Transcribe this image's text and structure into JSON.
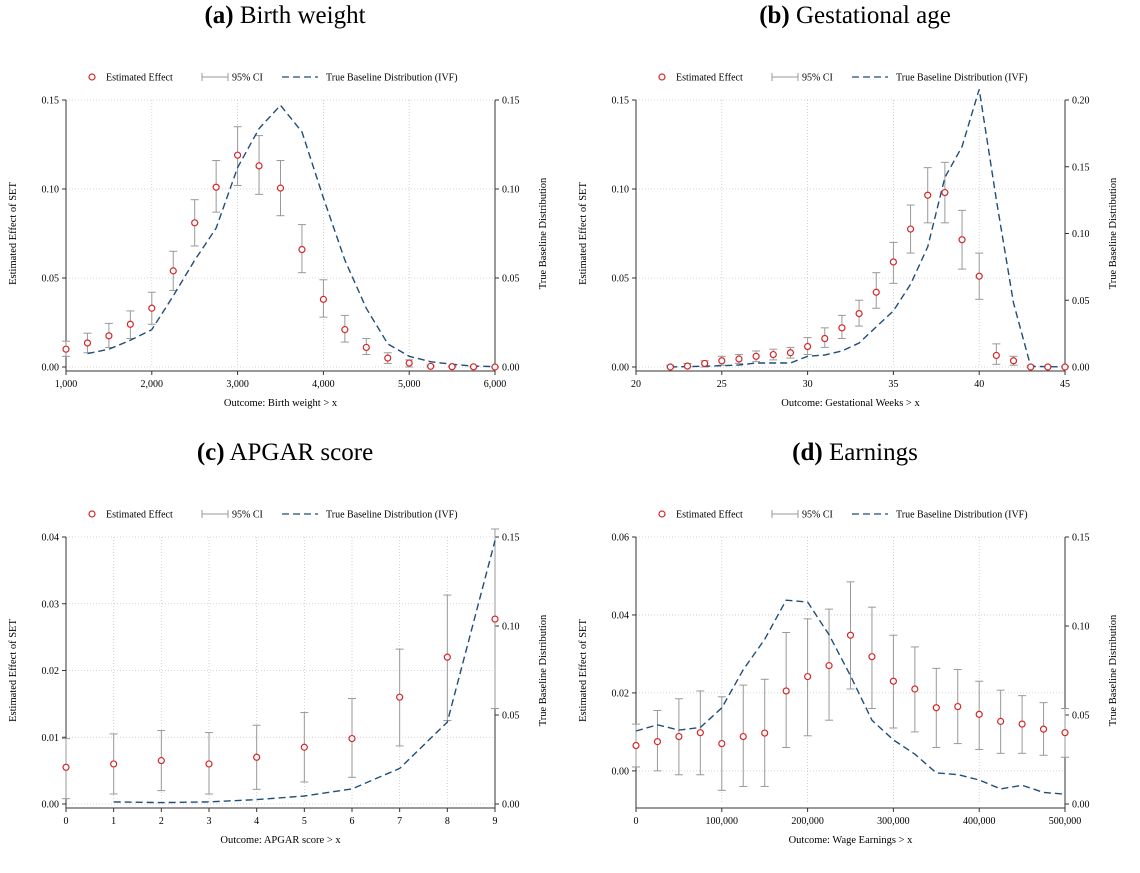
{
  "chart_data": [
    {
      "type": "scatter",
      "label": "(a)",
      "title": "Birth weight",
      "xlabel": "Outcome: Birth weight > x",
      "ylabel": "Estimated Effect of SET",
      "y2label": "True Baseline Distribution",
      "legend": [
        "Estimated Effect",
        "95% CI",
        "True Baseline Distribution (IVF)"
      ],
      "xlim": [
        1000,
        6000
      ],
      "ylim": [
        0,
        0.15
      ],
      "y2lim": [
        0,
        0.15
      ],
      "xticks": [
        1000,
        2000,
        3000,
        4000,
        5000,
        6000
      ],
      "xtick_labels": [
        "1,000",
        "2,000",
        "3,000",
        "4,000",
        "5,000",
        "6,000"
      ],
      "yticks": [
        0,
        0.05,
        0.1,
        0.15
      ],
      "ytick_labels": [
        "0.00",
        "0.05",
        "0.10",
        "0.15"
      ],
      "y2ticks": [
        0,
        0.05,
        0.1,
        0.15
      ],
      "y2tick_labels": [
        "0.00",
        "0.05",
        "0.10",
        "0.15"
      ],
      "grid": true,
      "estimate": {
        "x": [
          1000,
          1250,
          1500,
          1750,
          2000,
          2250,
          2500,
          2750,
          3000,
          3250,
          3500,
          3750,
          4000,
          4250,
          4500,
          4750,
          5000,
          5250,
          5500,
          5750,
          6000
        ],
        "y": [
          0.01,
          0.0135,
          0.0175,
          0.024,
          0.033,
          0.054,
          0.081,
          0.101,
          0.119,
          0.113,
          0.1005,
          0.066,
          0.038,
          0.021,
          0.011,
          0.005,
          0.0022,
          0.0004,
          0.0002,
          0.0001,
          0.0
        ],
        "ci_low": [
          0.006,
          0.008,
          0.011,
          0.016,
          0.024,
          0.043,
          0.068,
          0.087,
          0.102,
          0.097,
          0.085,
          0.053,
          0.028,
          0.014,
          0.007,
          0.002,
          0.0,
          0.0,
          0.0,
          0.0,
          0.0
        ],
        "ci_high": [
          0.0145,
          0.019,
          0.0245,
          0.0315,
          0.042,
          0.065,
          0.094,
          0.116,
          0.135,
          0.13,
          0.116,
          0.08,
          0.049,
          0.029,
          0.016,
          0.008,
          0.004,
          0.001,
          0.0005,
          0.0003,
          0.0002
        ]
      },
      "baseline": {
        "x": [
          1250,
          1500,
          1750,
          2000,
          2250,
          2500,
          2750,
          3000,
          3250,
          3500,
          3750,
          4000,
          4250,
          4500,
          4750,
          5000,
          5250,
          5500,
          5750,
          6000
        ],
        "y": [
          0.0075,
          0.01,
          0.015,
          0.021,
          0.04,
          0.06,
          0.078,
          0.112,
          0.134,
          0.147,
          0.132,
          0.095,
          0.06,
          0.033,
          0.013,
          0.006,
          0.003,
          0.0015,
          0.0005,
          0.0002
        ]
      }
    },
    {
      "type": "scatter",
      "label": "(b)",
      "title": "Gestational age",
      "xlabel": "Outcome: Gestational Weeks > x",
      "ylabel": "Estimated Effect of SET",
      "y2label": "True Baseline Distribution",
      "legend": [
        "Estimated Effect",
        "95% CI",
        "True Baseline Distribution (IVF)"
      ],
      "xlim": [
        20,
        45
      ],
      "ylim": [
        0,
        0.15
      ],
      "y2lim": [
        0,
        0.2
      ],
      "xticks": [
        20,
        25,
        30,
        35,
        40,
        45
      ],
      "xtick_labels": [
        "20",
        "25",
        "30",
        "35",
        "40",
        "45"
      ],
      "yticks": [
        0,
        0.05,
        0.1,
        0.15
      ],
      "ytick_labels": [
        "0.00",
        "0.05",
        "0.10",
        "0.15"
      ],
      "y2ticks": [
        0,
        0.05,
        0.1,
        0.15,
        0.2
      ],
      "y2tick_labels": [
        "0.00",
        "0.05",
        "0.10",
        "0.15",
        "0.20"
      ],
      "grid": true,
      "estimate": {
        "x": [
          22,
          23,
          24,
          25,
          26,
          27,
          28,
          29,
          30,
          31,
          32,
          33,
          34,
          35,
          36,
          37,
          38,
          39,
          40,
          41,
          42,
          43,
          44,
          45
        ],
        "y": [
          0.0,
          0.0005,
          0.002,
          0.0035,
          0.0045,
          0.006,
          0.007,
          0.008,
          0.0115,
          0.016,
          0.022,
          0.03,
          0.042,
          0.059,
          0.0775,
          0.0965,
          0.098,
          0.0715,
          0.051,
          0.0065,
          0.0035,
          0.0,
          0.0,
          0.0
        ],
        "ci_low": [
          0.0,
          0.0,
          0.0,
          0.001,
          0.002,
          0.003,
          0.004,
          0.005,
          0.007,
          0.011,
          0.016,
          0.023,
          0.033,
          0.047,
          0.064,
          0.081,
          0.081,
          0.055,
          0.038,
          0.0015,
          0.001,
          0.0,
          0.0,
          0.0
        ],
        "ci_high": [
          0.001,
          0.002,
          0.0035,
          0.006,
          0.007,
          0.009,
          0.01,
          0.011,
          0.0165,
          0.022,
          0.029,
          0.0375,
          0.053,
          0.07,
          0.091,
          0.112,
          0.115,
          0.088,
          0.064,
          0.013,
          0.006,
          0.001,
          0.0005,
          0.0005
        ]
      },
      "baseline": {
        "x": [
          22,
          23,
          24,
          25,
          26,
          27,
          28,
          29,
          30,
          31,
          32,
          33,
          34,
          35,
          36,
          37,
          38,
          39,
          40,
          41,
          42,
          43,
          44,
          45
        ],
        "y": [
          0.0,
          0.0003,
          0.0006,
          0.001,
          0.0015,
          0.003,
          0.003,
          0.003,
          0.008,
          0.009,
          0.012,
          0.018,
          0.03,
          0.042,
          0.062,
          0.09,
          0.142,
          0.165,
          0.208,
          0.125,
          0.048,
          0.0005,
          0.0002,
          0.0001
        ]
      }
    },
    {
      "type": "scatter",
      "label": "(c)",
      "title": "APGAR score",
      "xlabel": "Outcome: APGAR score > x",
      "ylabel": "Estimated Effect of SET",
      "y2label": "True Baseline Distribution",
      "legend": [
        "Estimated Effect",
        "95% CI",
        "True Baseline Distribution (IVF)"
      ],
      "xlim": [
        0,
        9
      ],
      "ylim": [
        0,
        0.04
      ],
      "y2lim": [
        0,
        0.15
      ],
      "xticks": [
        0,
        1,
        2,
        3,
        4,
        5,
        6,
        7,
        8,
        9
      ],
      "xtick_labels": [
        "0",
        "1",
        "2",
        "3",
        "4",
        "5",
        "6",
        "7",
        "8",
        "9"
      ],
      "yticks": [
        0,
        0.01,
        0.02,
        0.03,
        0.04
      ],
      "ytick_labels": [
        "0.00",
        "0.01",
        "0.02",
        "0.03",
        "0.04"
      ],
      "y2ticks": [
        0,
        0.05,
        0.1,
        0.15
      ],
      "y2tick_labels": [
        "0.00",
        "0.05",
        "0.10",
        "0.15"
      ],
      "grid": true,
      "estimate": {
        "x": [
          0,
          1,
          2,
          3,
          4,
          5,
          6,
          7,
          8,
          9
        ],
        "y": [
          0.0055,
          0.006,
          0.0065,
          0.006,
          0.007,
          0.0085,
          0.0098,
          0.016,
          0.022,
          0.0277
        ],
        "ci_low": [
          0.0008,
          0.0015,
          0.002,
          0.0015,
          0.0022,
          0.0033,
          0.004,
          0.0087,
          0.0125,
          0.0143
        ],
        "ci_high": [
          0.0098,
          0.0105,
          0.011,
          0.0107,
          0.0118,
          0.0137,
          0.0158,
          0.0232,
          0.0313,
          0.0412
        ]
      },
      "baseline": {
        "x": [
          1,
          2,
          3,
          4,
          5,
          6,
          7,
          8,
          9
        ],
        "y": [
          0.0012,
          0.0008,
          0.0012,
          0.0025,
          0.0045,
          0.0085,
          0.02,
          0.046,
          0.148
        ]
      }
    },
    {
      "type": "scatter",
      "label": "(d)",
      "title": "Earnings",
      "xlabel": "Outcome: Wage Earnings > x",
      "ylabel": "Estimated Effect of SET",
      "y2label": "True Baseline Distribution",
      "legend": [
        "Estimated Effect",
        "95% CI",
        "True Baseline Distribution (IVF)"
      ],
      "xlim": [
        0,
        500000
      ],
      "ylim": [
        -0.0085,
        0.06
      ],
      "y2lim": [
        0,
        0.15
      ],
      "xticks": [
        0,
        100000,
        200000,
        300000,
        400000,
        500000
      ],
      "xtick_labels": [
        "0",
        "100,000",
        "200,000",
        "300,000",
        "400,000",
        "500,000"
      ],
      "yticks": [
        0,
        0.02,
        0.04,
        0.06
      ],
      "ytick_labels": [
        "0.00",
        "0.02",
        "0.04",
        "0.06"
      ],
      "y2ticks": [
        0,
        0.05,
        0.1,
        0.15
      ],
      "y2tick_labels": [
        "0.00",
        "0.05",
        "0.10",
        "0.15"
      ],
      "grid": true,
      "estimate": {
        "x": [
          0,
          25000,
          50000,
          75000,
          100000,
          125000,
          150000,
          175000,
          200000,
          225000,
          250000,
          275000,
          300000,
          325000,
          350000,
          375000,
          400000,
          425000,
          450000,
          475000,
          500000
        ],
        "y": [
          0.0065,
          0.0075,
          0.0088,
          0.0098,
          0.007,
          0.0088,
          0.0097,
          0.0205,
          0.0242,
          0.027,
          0.0348,
          0.0293,
          0.023,
          0.021,
          0.0162,
          0.0165,
          0.0145,
          0.0127,
          0.012,
          0.0107,
          0.0098
        ],
        "ci_low": [
          0.001,
          0.0,
          -0.001,
          -0.001,
          -0.005,
          -0.004,
          -0.004,
          0.006,
          0.009,
          0.013,
          0.021,
          0.016,
          0.011,
          0.01,
          0.006,
          0.007,
          0.0055,
          0.0045,
          0.0045,
          0.004,
          0.0035
        ],
        "ci_high": [
          0.012,
          0.0155,
          0.0185,
          0.0205,
          0.019,
          0.022,
          0.0235,
          0.0355,
          0.039,
          0.0415,
          0.0485,
          0.042,
          0.0348,
          0.0318,
          0.0263,
          0.026,
          0.023,
          0.0207,
          0.0193,
          0.0175,
          0.016
        ]
      },
      "baseline": {
        "x": [
          0,
          25000,
          50000,
          75000,
          100000,
          125000,
          150000,
          175000,
          200000,
          225000,
          250000,
          275000,
          300000,
          325000,
          350000,
          375000,
          400000,
          425000,
          450000,
          475000,
          500000
        ],
        "y": [
          0.041,
          0.0445,
          0.0415,
          0.043,
          0.054,
          0.0755,
          0.0925,
          0.1145,
          0.1135,
          0.095,
          0.072,
          0.047,
          0.036,
          0.028,
          0.0175,
          0.0165,
          0.0135,
          0.0085,
          0.0105,
          0.0065,
          0.0055
        ]
      }
    }
  ]
}
